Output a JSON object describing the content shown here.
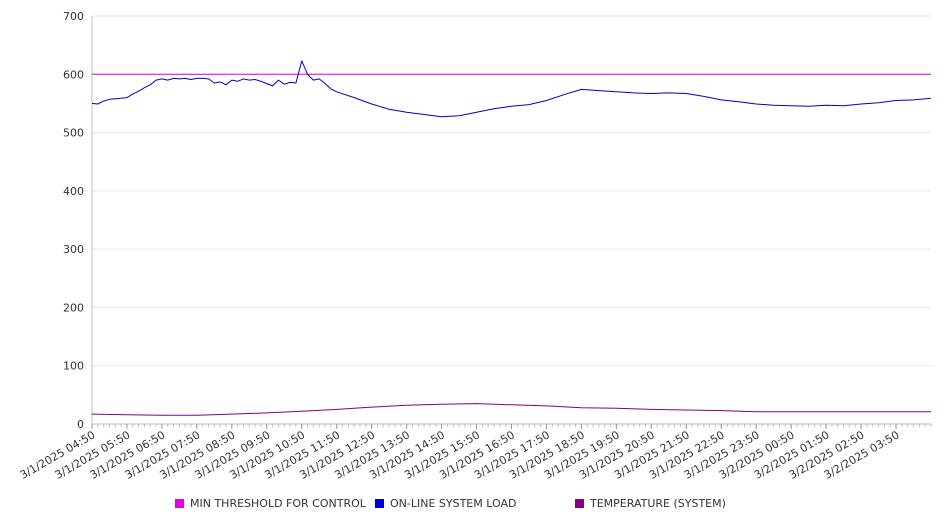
{
  "chart_data": {
    "type": "line",
    "title": "",
    "xlabel": "",
    "ylabel": "",
    "ylim": [
      0,
      700
    ],
    "yticks": [
      0,
      100,
      200,
      300,
      400,
      500,
      600,
      700
    ],
    "grid": true,
    "legend_position": "bottom",
    "x_start": "3/1/2025 04:50",
    "x_end": "3/2/2025 04:50",
    "xtick_labels": [
      "3/1/2025 04:50",
      "3/1/2025 05:50",
      "3/1/2025 06:50",
      "3/1/2025 07:50",
      "3/1/2025 08:50",
      "3/1/2025 09:50",
      "3/1/2025 10:50",
      "3/1/2025 11:50",
      "3/1/2025 12:50",
      "3/1/2025 13:50",
      "3/1/2025 14:50",
      "3/1/2025 15:50",
      "3/1/2025 16:50",
      "3/1/2025 17:50",
      "3/1/2025 18:50",
      "3/1/2025 19:50",
      "3/1/2025 20:50",
      "3/1/2025 21:50",
      "3/1/2025 22:50",
      "3/1/2025 23:50",
      "3/2/2025 00:50",
      "3/2/2025 01:50",
      "3/2/2025 02:50",
      "3/2/2025 03:50"
    ],
    "series": [
      {
        "name": "MIN THRESHOLD FOR CONTROL",
        "color": "#e000e0",
        "x": [
          "3/1/2025 04:50",
          "3/2/2025 04:50"
        ],
        "values": [
          600,
          600
        ]
      },
      {
        "name": "ON-LINE SYSTEM LOAD",
        "color": "#0000cc",
        "x": [
          "3/1/2025 04:50",
          "3/1/2025 05:00",
          "3/1/2025 05:10",
          "3/1/2025 05:20",
          "3/1/2025 05:30",
          "3/1/2025 05:40",
          "3/1/2025 05:50",
          "3/1/2025 06:00",
          "3/1/2025 06:10",
          "3/1/2025 06:20",
          "3/1/2025 06:30",
          "3/1/2025 06:40",
          "3/1/2025 06:50",
          "3/1/2025 07:00",
          "3/1/2025 07:10",
          "3/1/2025 07:20",
          "3/1/2025 07:30",
          "3/1/2025 07:40",
          "3/1/2025 07:50",
          "3/1/2025 08:00",
          "3/1/2025 08:10",
          "3/1/2025 08:20",
          "3/1/2025 08:30",
          "3/1/2025 08:40",
          "3/1/2025 08:50",
          "3/1/2025 09:00",
          "3/1/2025 09:10",
          "3/1/2025 09:20",
          "3/1/2025 09:30",
          "3/1/2025 09:40",
          "3/1/2025 09:50",
          "3/1/2025 10:00",
          "3/1/2025 10:10",
          "3/1/2025 10:20",
          "3/1/2025 10:30",
          "3/1/2025 10:40",
          "3/1/2025 10:50",
          "3/1/2025 11:00",
          "3/1/2025 11:10",
          "3/1/2025 11:20",
          "3/1/2025 11:30",
          "3/1/2025 11:40",
          "3/1/2025 11:50",
          "3/1/2025 12:20",
          "3/1/2025 12:50",
          "3/1/2025 13:20",
          "3/1/2025 13:50",
          "3/1/2025 14:20",
          "3/1/2025 14:50",
          "3/1/2025 15:20",
          "3/1/2025 15:50",
          "3/1/2025 16:20",
          "3/1/2025 16:50",
          "3/1/2025 17:20",
          "3/1/2025 17:50",
          "3/1/2025 18:20",
          "3/1/2025 18:50",
          "3/1/2025 19:20",
          "3/1/2025 19:50",
          "3/1/2025 20:20",
          "3/1/2025 20:50",
          "3/1/2025 21:20",
          "3/1/2025 21:50",
          "3/1/2025 22:20",
          "3/1/2025 22:50",
          "3/1/2025 23:20",
          "3/1/2025 23:50",
          "3/2/2025 00:20",
          "3/2/2025 00:50",
          "3/2/2025 01:20",
          "3/2/2025 01:50",
          "3/2/2025 02:20",
          "3/2/2025 02:50",
          "3/2/2025 03:20",
          "3/2/2025 03:50",
          "3/2/2025 04:20",
          "3/2/2025 04:50"
        ],
        "values": [
          550,
          549,
          554,
          557,
          558,
          559,
          560,
          566,
          571,
          577,
          582,
          590,
          592,
          590,
          593,
          592,
          593,
          591,
          593,
          593,
          592,
          585,
          587,
          582,
          590,
          588,
          592,
          590,
          591,
          588,
          584,
          580,
          590,
          583,
          586,
          585,
          623,
          600,
          590,
          592,
          584,
          575,
          570,
          560,
          549,
          540,
          535,
          531,
          527,
          529,
          535,
          541,
          545,
          548,
          555,
          565,
          574,
          572,
          570,
          568,
          567,
          568,
          567,
          562,
          556,
          553,
          549,
          547,
          546,
          545,
          547,
          546,
          549,
          551,
          555,
          556,
          559
        ]
      },
      {
        "name": "TEMPERATURE (SYSTEM)",
        "color": "#800080",
        "x": [
          "3/1/2025 04:50",
          "3/1/2025 05:50",
          "3/1/2025 06:50",
          "3/1/2025 07:50",
          "3/1/2025 08:50",
          "3/1/2025 09:50",
          "3/1/2025 10:50",
          "3/1/2025 11:50",
          "3/1/2025 12:50",
          "3/1/2025 13:50",
          "3/1/2025 14:50",
          "3/1/2025 15:50",
          "3/1/2025 16:50",
          "3/1/2025 17:50",
          "3/1/2025 18:50",
          "3/1/2025 19:50",
          "3/1/2025 20:50",
          "3/1/2025 21:50",
          "3/1/2025 22:50",
          "3/1/2025 23:50",
          "3/2/2025 00:50",
          "3/2/2025 01:50",
          "3/2/2025 02:50",
          "3/2/2025 03:50",
          "3/2/2025 04:50"
        ],
        "values": [
          17,
          16,
          15,
          15,
          17,
          19,
          22,
          25,
          29,
          32,
          34,
          35,
          33,
          31,
          28,
          27,
          25,
          24,
          23,
          21,
          21,
          21,
          21,
          21,
          21
        ]
      }
    ]
  }
}
